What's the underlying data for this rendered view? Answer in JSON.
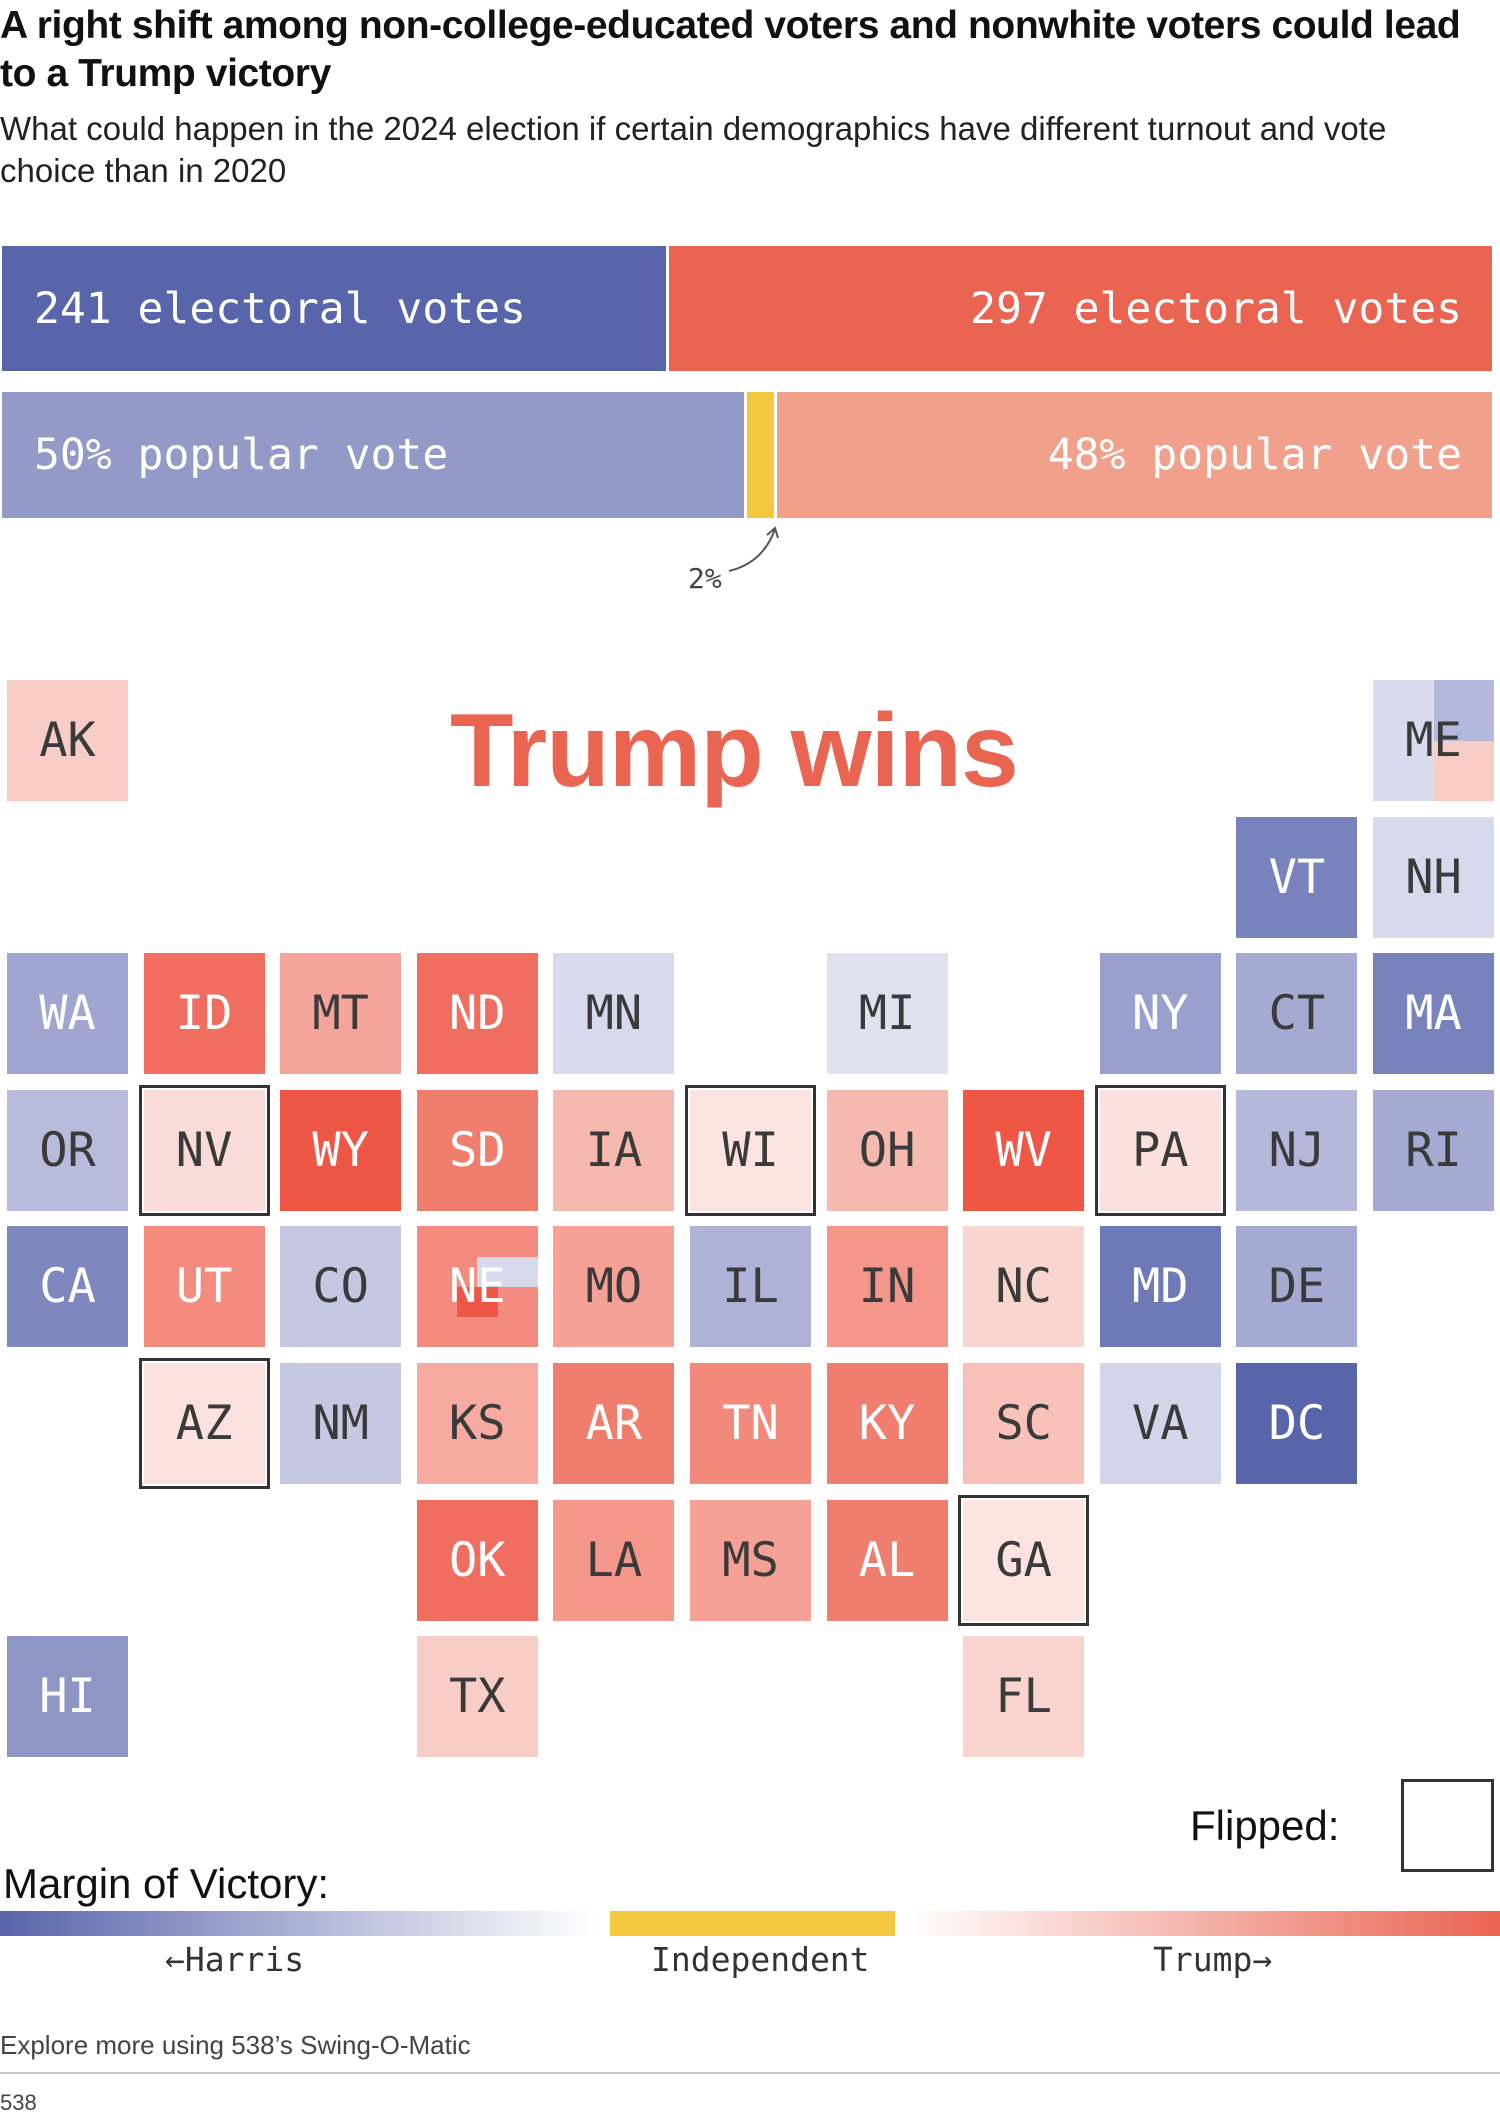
{
  "title": "A right shift among non-college-educated voters and nonwhite voters could lead to a Trump victory",
  "subtitle": "What could happen in the 2024 election if certain demographics have different turnout and vote choice than in 2020",
  "headline": "Trump wins",
  "colors": {
    "harris_dark": "#5965ab",
    "trump_dark": "#ea6452",
    "harris_light": "#949ac8",
    "trump_light": "#f1a08b",
    "independent": "#f5c73f",
    "flipped_border": "#333333"
  },
  "chart_data": [
    {
      "type": "bar",
      "name": "electoral",
      "series": [
        {
          "candidate": "Harris",
          "value": 241,
          "label": "241 electoral votes"
        },
        {
          "candidate": "Trump",
          "value": 297,
          "label": "297 electoral votes"
        }
      ]
    },
    {
      "type": "bar",
      "name": "popular",
      "series": [
        {
          "candidate": "Harris",
          "value": 50,
          "label": "50% popular vote"
        },
        {
          "candidate": "Independent",
          "value": 2,
          "label": "2%"
        },
        {
          "candidate": "Trump",
          "value": 48,
          "label": "48% popular vote"
        }
      ]
    },
    {
      "type": "heatmap",
      "name": "state tile map",
      "cells": [
        {
          "state": "AK",
          "row": 0,
          "col": 0,
          "fill": "#f8cdc6",
          "flipped": false
        },
        {
          "state": "ME",
          "row": 0,
          "col": 10,
          "fill": "#d9dcee",
          "flipped": false,
          "split": [
            {
              "fill": "#b4b8da"
            },
            {
              "fill": "#f8cdc6"
            }
          ]
        },
        {
          "state": "VT",
          "row": 1,
          "col": 9,
          "fill": "#7883bd",
          "flipped": false
        },
        {
          "state": "NH",
          "row": 1,
          "col": 10,
          "fill": "#d7daec",
          "flipped": false
        },
        {
          "state": "WA",
          "row": 2,
          "col": 0,
          "fill": "#a1a6d1",
          "flipped": false
        },
        {
          "state": "ID",
          "row": 2,
          "col": 1,
          "fill": "#ef6e5f",
          "flipped": false
        },
        {
          "state": "MT",
          "row": 2,
          "col": 2,
          "fill": "#f4a49a",
          "flipped": false
        },
        {
          "state": "ND",
          "row": 2,
          "col": 3,
          "fill": "#ef6e5f",
          "flipped": false
        },
        {
          "state": "MN",
          "row": 2,
          "col": 4,
          "fill": "#d7daec",
          "flipped": false
        },
        {
          "state": "MI",
          "row": 2,
          "col": 6,
          "fill": "#dfe1ef",
          "flipped": false
        },
        {
          "state": "NY",
          "row": 2,
          "col": 8,
          "fill": "#9aa0ce",
          "flipped": false
        },
        {
          "state": "CT",
          "row": 2,
          "col": 9,
          "fill": "#a5aad2",
          "flipped": false
        },
        {
          "state": "MA",
          "row": 2,
          "col": 10,
          "fill": "#7883bd",
          "flipped": false
        },
        {
          "state": "OR",
          "row": 3,
          "col": 0,
          "fill": "#b8bcdc",
          "flipped": false
        },
        {
          "state": "NV",
          "row": 3,
          "col": 1,
          "fill": "#f9dcd8",
          "flipped": true
        },
        {
          "state": "WY",
          "row": 3,
          "col": 2,
          "fill": "#ee5645",
          "flipped": false
        },
        {
          "state": "SD",
          "row": 3,
          "col": 3,
          "fill": "#f07e6f",
          "flipped": false
        },
        {
          "state": "IA",
          "row": 3,
          "col": 4,
          "fill": "#f6b9b0",
          "flipped": false
        },
        {
          "state": "WI",
          "row": 3,
          "col": 5,
          "fill": "#fbe3df",
          "flipped": true
        },
        {
          "state": "OH",
          "row": 3,
          "col": 6,
          "fill": "#f6b9b0",
          "flipped": false
        },
        {
          "state": "WV",
          "row": 3,
          "col": 7,
          "fill": "#ee5645",
          "flipped": false
        },
        {
          "state": "PA",
          "row": 3,
          "col": 8,
          "fill": "#fae1dd",
          "flipped": true
        },
        {
          "state": "NJ",
          "row": 3,
          "col": 9,
          "fill": "#b4b8da",
          "flipped": false
        },
        {
          "state": "RI",
          "row": 3,
          "col": 10,
          "fill": "#a5aad2",
          "flipped": false
        },
        {
          "state": "CA",
          "row": 4,
          "col": 0,
          "fill": "#7e88bf",
          "flipped": false
        },
        {
          "state": "UT",
          "row": 4,
          "col": 1,
          "fill": "#f38c7f",
          "flipped": false
        },
        {
          "state": "CO",
          "row": 4,
          "col": 2,
          "fill": "#c5c8e3",
          "flipped": false
        },
        {
          "state": "NE",
          "row": 4,
          "col": 3,
          "fill": "#f38c7f",
          "flipped": false,
          "split": [
            {
              "fill": "#d7daec"
            },
            {
              "fill": "#ee5645"
            }
          ]
        },
        {
          "state": "MO",
          "row": 4,
          "col": 4,
          "fill": "#f5a196",
          "flipped": false
        },
        {
          "state": "IL",
          "row": 4,
          "col": 5,
          "fill": "#aeb2d7",
          "flipped": false
        },
        {
          "state": "IN",
          "row": 4,
          "col": 6,
          "fill": "#f4978a",
          "flipped": false
        },
        {
          "state": "NC",
          "row": 4,
          "col": 7,
          "fill": "#f9d5cf",
          "flipped": false
        },
        {
          "state": "MD",
          "row": 4,
          "col": 8,
          "fill": "#6e79b8",
          "flipped": false
        },
        {
          "state": "DE",
          "row": 4,
          "col": 9,
          "fill": "#a5aad2",
          "flipped": false
        },
        {
          "state": "AZ",
          "row": 5,
          "col": 1,
          "fill": "#fbe2de",
          "flipped": true
        },
        {
          "state": "NM",
          "row": 5,
          "col": 2,
          "fill": "#c5c8e3",
          "flipped": false
        },
        {
          "state": "KS",
          "row": 5,
          "col": 3,
          "fill": "#f6aaa0",
          "flipped": false
        },
        {
          "state": "AR",
          "row": 5,
          "col": 4,
          "fill": "#f07e6f",
          "flipped": false
        },
        {
          "state": "TN",
          "row": 5,
          "col": 5,
          "fill": "#f2897b",
          "flipped": false
        },
        {
          "state": "KY",
          "row": 5,
          "col": 6,
          "fill": "#f07e6f",
          "flipped": false
        },
        {
          "state": "SC",
          "row": 5,
          "col": 7,
          "fill": "#f8c2ba",
          "flipped": false
        },
        {
          "state": "VA",
          "row": 5,
          "col": 8,
          "fill": "#d3d6ea",
          "flipped": false
        },
        {
          "state": "DC",
          "row": 5,
          "col": 9,
          "fill": "#5965ab",
          "flipped": false
        },
        {
          "state": "OK",
          "row": 6,
          "col": 3,
          "fill": "#ef6e5f",
          "flipped": false
        },
        {
          "state": "LA",
          "row": 6,
          "col": 4,
          "fill": "#f5978b",
          "flipped": false
        },
        {
          "state": "MS",
          "row": 6,
          "col": 5,
          "fill": "#f5a196",
          "flipped": false
        },
        {
          "state": "AL",
          "row": 6,
          "col": 6,
          "fill": "#f07e6f",
          "flipped": false
        },
        {
          "state": "GA",
          "row": 6,
          "col": 7,
          "fill": "#fbe4e0",
          "flipped": true
        },
        {
          "state": "HI",
          "row": 7,
          "col": 0,
          "fill": "#8e96c6",
          "flipped": false
        },
        {
          "state": "TX",
          "row": 7,
          "col": 3,
          "fill": "#f8cdc6",
          "flipped": false
        },
        {
          "state": "FL",
          "row": 7,
          "col": 7,
          "fill": "#f9d3cd",
          "flipped": false
        }
      ]
    }
  ],
  "legend": {
    "flipped_label": "Flipped:",
    "margin_label": "Margin of Victory:",
    "harris_label": "←Harris",
    "independent_label": "Independent",
    "trump_label": "Trump→"
  },
  "footnote": "Explore more using 538’s Swing-O-Matic",
  "source": "538"
}
